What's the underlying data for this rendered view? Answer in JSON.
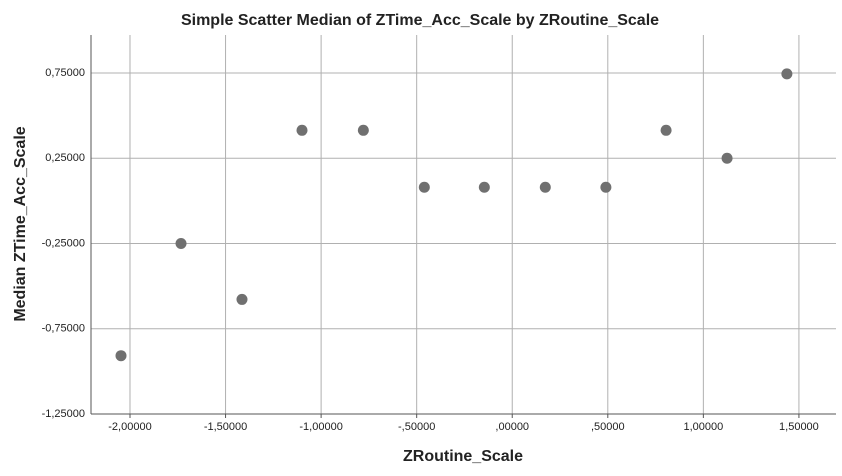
{
  "chart_data": {
    "type": "scatter",
    "title": "Simple Scatter Median of ZTime_Acc_Scale by ZRoutine_Scale",
    "x_label": "ZRoutine_Scale",
    "y_label": "Median ZTime_Acc_Scale",
    "x": [
      -2.047,
      -1.733,
      -1.414,
      -1.1,
      -0.779,
      -0.46,
      -0.146,
      0.173,
      0.49,
      0.805,
      1.124,
      1.437
    ],
    "y": [
      -0.908,
      -0.25,
      -0.578,
      0.414,
      0.414,
      0.08,
      0.08,
      0.08,
      0.08,
      0.414,
      0.25,
      0.745
    ],
    "color": "#707070",
    "xlim": [
      -2.204,
      1.694
    ],
    "ylim": [
      -1.25,
      0.973
    ],
    "xticks": [
      {
        "value": -2,
        "label": "-2,00000"
      },
      {
        "value": -1.5,
        "label": "-1,50000"
      },
      {
        "value": -1,
        "label": "-1,00000"
      },
      {
        "value": -0.5,
        "label": "-,50000"
      },
      {
        "value": 0,
        "label": ",00000"
      },
      {
        "value": 0.5,
        "label": ",50000"
      },
      {
        "value": 1,
        "label": "1,00000"
      },
      {
        "value": 1.5,
        "label": "1,50000"
      }
    ],
    "yticks": [
      {
        "value": 0.75,
        "label": "0,75000"
      },
      {
        "value": 0.25,
        "label": "0,25000"
      },
      {
        "value": -0.25,
        "label": "-0,25000"
      },
      {
        "value": -0.75,
        "label": "-0,75000"
      },
      {
        "value": -1.25,
        "label": "-1,25000"
      }
    ],
    "grid": true
  }
}
